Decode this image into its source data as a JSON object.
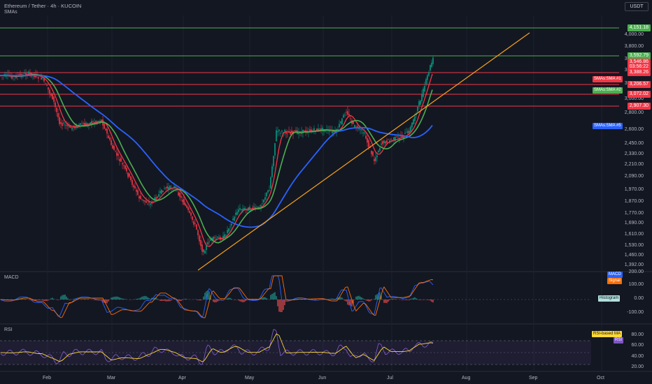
{
  "header": {
    "symbol_title": "Ethereum / Tether · 4h · KUCOIN",
    "indicator_label": "SMAs",
    "currency_button": "USDT"
  },
  "colors": {
    "background": "#131722",
    "grid": "#1e222d",
    "up_candle": "#089981",
    "down_candle": "#f23645",
    "resistance_line": "#f23645",
    "green_line": "#4caf50",
    "trendline": "#f7a21b",
    "sma1": "#f23645",
    "sma2": "#4caf50",
    "sma5": "#2962ff",
    "macd": "#2962ff",
    "signal": "#ff6d00",
    "rsi": "#7e57c2",
    "rsi_ma": "#fdd835"
  },
  "price_axis": {
    "ticks": [
      "4,000.00",
      "3,800.00",
      "3,600.00",
      "3,400.00",
      "3,200.00",
      "3,000.00",
      "2,800.00",
      "2,600.00",
      "2,450.00",
      "2,330.00",
      "2,210.00",
      "2,090.00",
      "1,970.00",
      "1,870.00",
      "1,770.00",
      "1,690.00",
      "1,610.00",
      "1,530.00",
      "1,460.00",
      "1,392.00"
    ]
  },
  "level_tags": [
    {
      "label": "4,151.18",
      "color": "#4caf50"
    },
    {
      "label": "3,592.79",
      "color": "#4caf50"
    },
    {
      "label": "3,546.86",
      "color": "#f23645"
    },
    {
      "label": "03:56:22",
      "color": "#f23645"
    },
    {
      "label": "3,388.26",
      "color": "#f23645"
    },
    {
      "label": "3,206.57",
      "color": "#f23645"
    },
    {
      "label": "3,072.02",
      "color": "#f23645"
    },
    {
      "label": "2,907.30",
      "color": "#f23645"
    }
  ],
  "sma_legend": [
    {
      "label": "SMAs:SMA #1",
      "color": "#f23645"
    },
    {
      "label": "SMAs:SMA #2",
      "color": "#4caf50"
    },
    {
      "label": "SMAs:SMA #5",
      "color": "#2962ff"
    }
  ],
  "macd_pane": {
    "title": "MACD",
    "ticks": [
      "200.00",
      "100.00",
      "0.00",
      "-100.00"
    ],
    "legend": [
      {
        "label": "MACD",
        "color": "#2962ff"
      },
      {
        "label": "Signal",
        "color": "#ff6d00"
      },
      {
        "label": "Histogram",
        "color": "#b2dfdb"
      }
    ]
  },
  "rsi_pane": {
    "title": "RSI",
    "ticks": [
      "80.00",
      "60.00",
      "40.00",
      "20.00"
    ],
    "legend": [
      {
        "label": "RSI-based MA",
        "color": "#fdd835"
      },
      {
        "label": "RSI",
        "color": "#7e57c2"
      }
    ]
  },
  "time_axis": {
    "labels": [
      "Feb",
      "Mar",
      "Apr",
      "May",
      "Jun",
      "Jul",
      "Aug",
      "Sep",
      "Oct"
    ]
  }
}
